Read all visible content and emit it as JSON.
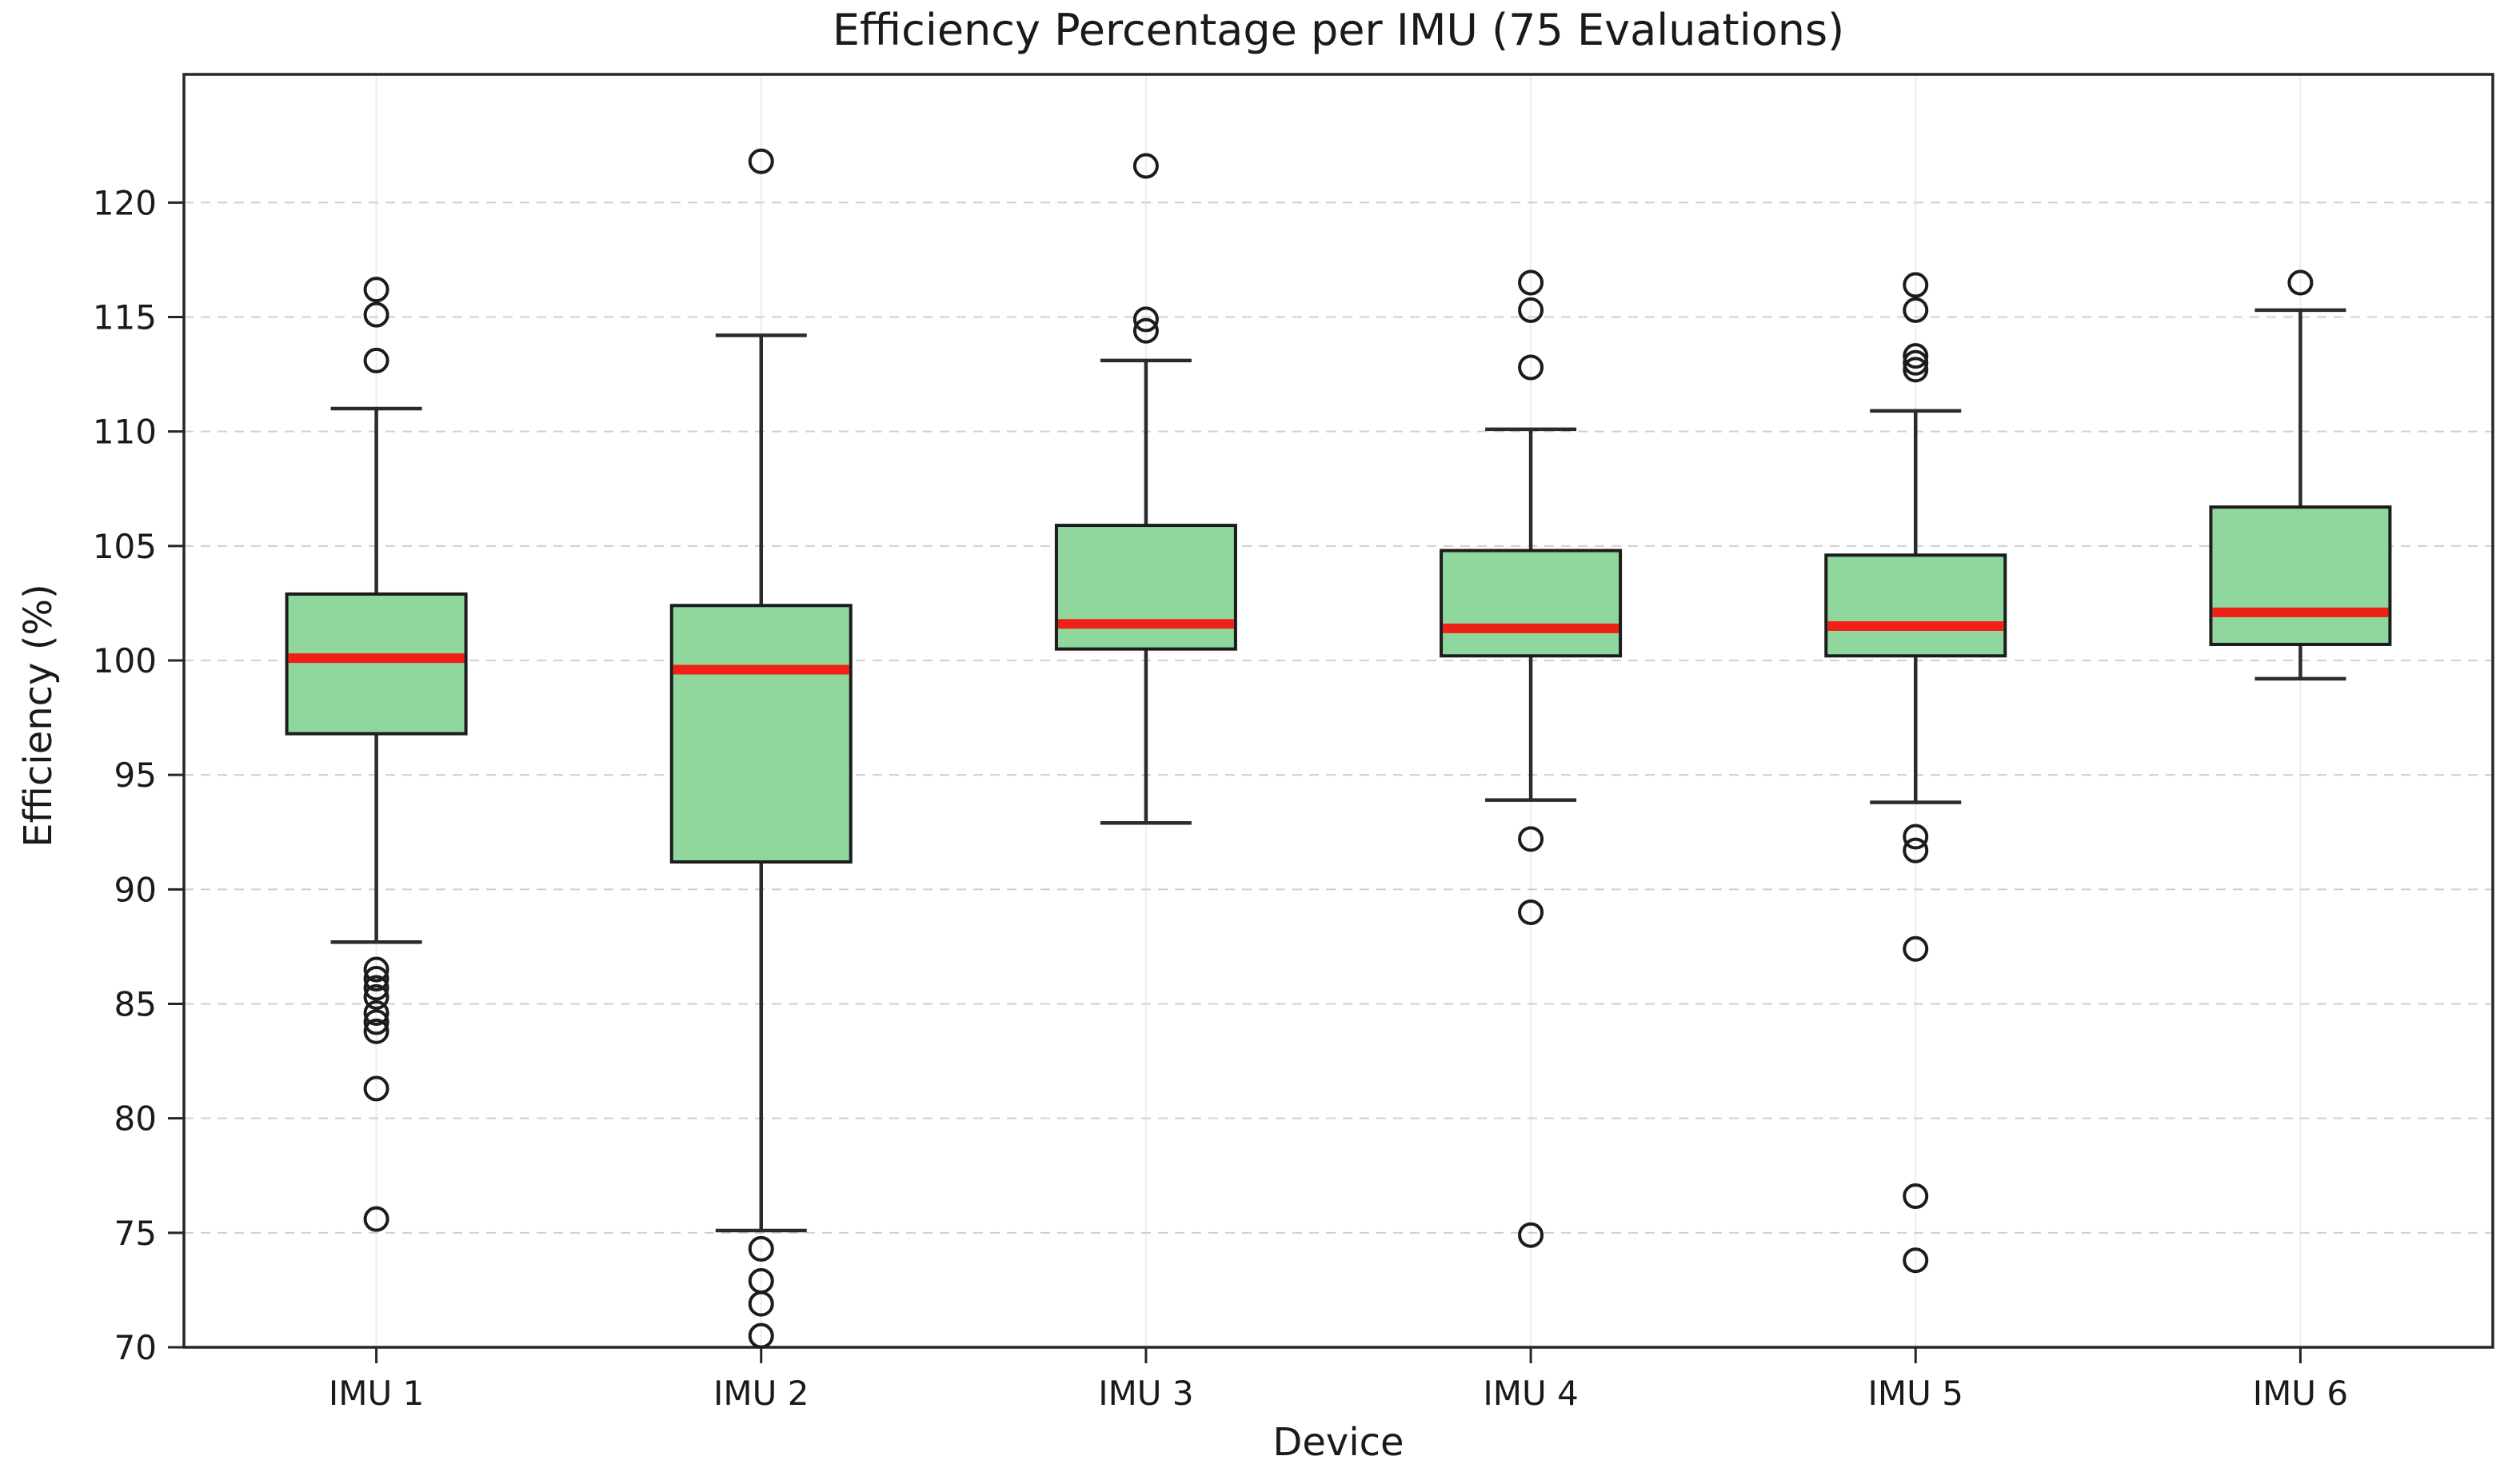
{
  "chart_data": {
    "type": "box",
    "title": "Efficiency Percentage per IMU (75 Evaluations)",
    "xlabel": "Device",
    "ylabel": "Efficiency (%)",
    "categories": [
      "IMU 1",
      "IMU 2",
      "IMU 3",
      "IMU 4",
      "IMU 5",
      "IMU 6"
    ],
    "boxes": [
      {
        "label": "IMU 1",
        "whislo": 87.7,
        "q1": 96.8,
        "med": 100.1,
        "q3": 102.9,
        "whishi": 111.0,
        "fliers": [
          116.2,
          115.1,
          113.1,
          86.5,
          86.1,
          85.7,
          85.3,
          84.6,
          84.2,
          83.8,
          81.3,
          75.6
        ]
      },
      {
        "label": "IMU 2",
        "whislo": 75.1,
        "q1": 91.2,
        "med": 99.6,
        "q3": 102.4,
        "whishi": 114.2,
        "fliers": [
          121.8,
          74.3,
          72.9,
          71.9,
          70.5
        ]
      },
      {
        "label": "IMU 3",
        "whislo": 92.9,
        "q1": 100.5,
        "med": 101.6,
        "q3": 105.9,
        "whishi": 113.1,
        "fliers": [
          121.6,
          114.9,
          114.4
        ]
      },
      {
        "label": "IMU 4",
        "whislo": 93.9,
        "q1": 100.2,
        "med": 101.4,
        "q3": 104.8,
        "whishi": 110.1,
        "fliers": [
          116.5,
          115.3,
          112.8,
          92.2,
          89.0,
          74.9
        ]
      },
      {
        "label": "IMU 5",
        "whislo": 93.8,
        "q1": 100.2,
        "med": 101.5,
        "q3": 104.6,
        "whishi": 110.9,
        "fliers": [
          116.4,
          115.3,
          113.3,
          113.0,
          112.7,
          92.3,
          91.7,
          87.4,
          76.6,
          73.8
        ]
      },
      {
        "label": "IMU 6",
        "whislo": 99.2,
        "q1": 100.7,
        "med": 102.1,
        "q3": 106.7,
        "whishi": 115.3,
        "fliers": [
          116.5
        ]
      }
    ],
    "yticks": [
      70,
      75,
      80,
      85,
      90,
      95,
      100,
      105,
      110,
      115,
      120
    ],
    "ylim": [
      70,
      125.6
    ],
    "legend": "none",
    "grid": {
      "horizontal": "dashed",
      "vertical": "faint-solid"
    },
    "colors": {
      "box_fill": "#8fd79c",
      "box_edge": "#1c1c1c",
      "median": "#ef2015",
      "whisker": "#2b2b2b",
      "flier_edge": "#1c1c1c",
      "grid": "#cfcfcf",
      "vgrid": "#e7eef5",
      "spine": "#262626",
      "text": "#1a1a1a",
      "background": "#ffffff"
    }
  }
}
